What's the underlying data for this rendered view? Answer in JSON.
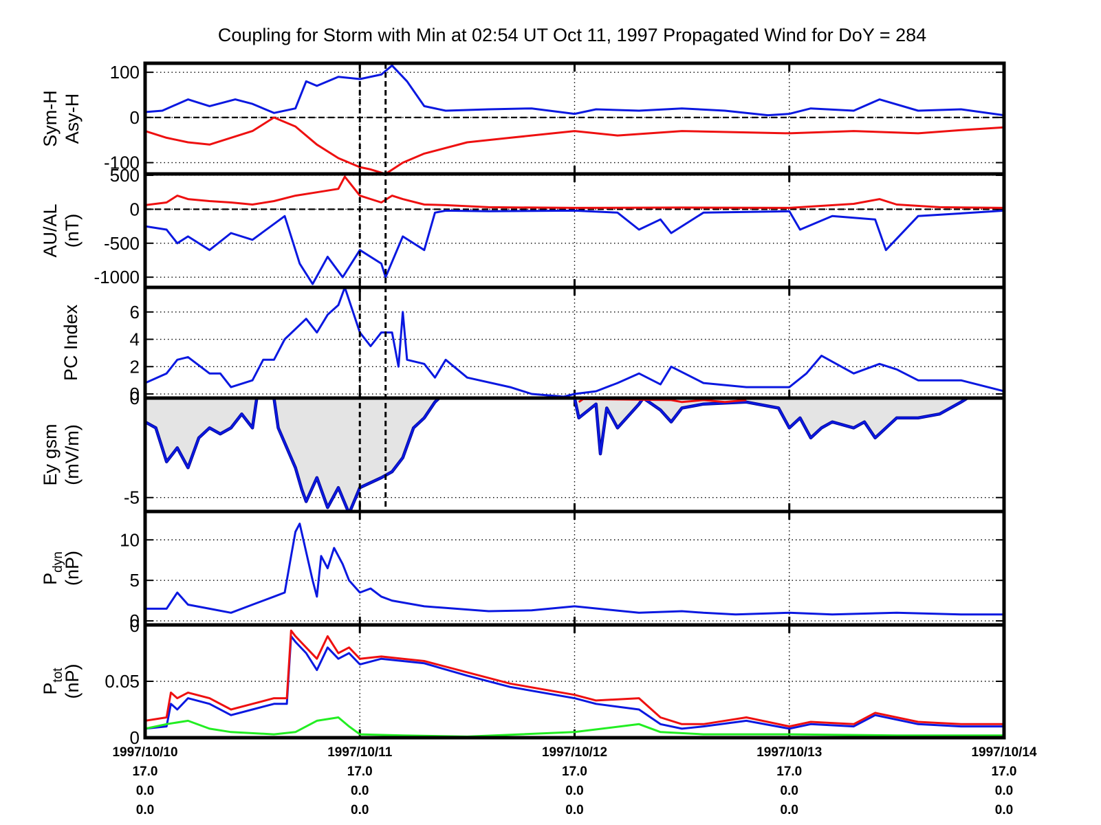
{
  "title": "Coupling for Storm with Min at 02:54 UT Oct 11, 1997  Propagated Wind for DoY = 284",
  "colors": {
    "blue": "#0a18e0",
    "red": "#ee1010",
    "green": "#22ee22",
    "fill": "#e4e4e4",
    "frame": "#000000"
  },
  "x_axis": {
    "range_days": [
      0,
      4
    ],
    "major_ticks": [
      0,
      1,
      2,
      3,
      4
    ],
    "labels": [
      {
        "date": "1997/10/10",
        "l2": "17.0",
        "l3": "0.0",
        "l4": "0.0"
      },
      {
        "date": "1997/10/11",
        "l2": "17.0",
        "l3": "0.0",
        "l4": "0.0"
      },
      {
        "date": "1997/10/12",
        "l2": "17.0",
        "l3": "0.0",
        "l4": "0.0"
      },
      {
        "date": "1997/10/13",
        "l2": "17.0",
        "l3": "0.0",
        "l4": "0.0"
      },
      {
        "date": "1997/10/14",
        "l2": "17.0",
        "l3": "0.0",
        "l4": "0.0"
      }
    ],
    "storm_min_marker_day": 1.12
  },
  "chart_data": [
    {
      "type": "line",
      "panel": "sym-asy",
      "ylabel": [
        "Sym-H",
        "Asy-H"
      ],
      "ylim": [
        -125,
        120
      ],
      "yticks": [
        100,
        0,
        -100
      ],
      "ytick_labels": [
        "100",
        "0",
        "-100"
      ],
      "zero_line": true,
      "series": [
        {
          "color": "blue",
          "x": [
            0,
            0.08,
            0.2,
            0.3,
            0.42,
            0.5,
            0.6,
            0.7,
            0.75,
            0.8,
            0.9,
            1.0,
            1.1,
            1.15,
            1.22,
            1.3,
            1.4,
            1.6,
            1.8,
            2.0,
            2.1,
            2.3,
            2.5,
            2.7,
            2.9,
            3.0,
            3.1,
            3.3,
            3.42,
            3.6,
            3.8,
            4.0
          ],
          "y": [
            12,
            15,
            40,
            25,
            40,
            30,
            10,
            20,
            80,
            70,
            90,
            85,
            95,
            115,
            80,
            25,
            15,
            18,
            20,
            8,
            18,
            15,
            20,
            15,
            5,
            8,
            20,
            15,
            40,
            15,
            18,
            5
          ]
        },
        {
          "color": "red",
          "x": [
            0,
            0.1,
            0.2,
            0.3,
            0.5,
            0.6,
            0.7,
            0.8,
            0.9,
            1.0,
            1.05,
            1.12,
            1.2,
            1.3,
            1.5,
            1.7,
            2.0,
            2.2,
            2.5,
            3.0,
            3.3,
            3.6,
            3.8,
            4.0
          ],
          "y": [
            -30,
            -45,
            -55,
            -60,
            -30,
            0,
            -20,
            -60,
            -90,
            -110,
            -115,
            -125,
            -100,
            -80,
            -55,
            -45,
            -30,
            -40,
            -30,
            -35,
            -30,
            -35,
            -28,
            -22
          ]
        }
      ]
    },
    {
      "type": "line",
      "panel": "au-al",
      "ylabel": [
        "AU/AL",
        "(nT)"
      ],
      "ylim": [
        -1150,
        520
      ],
      "yticks": [
        500,
        0,
        -500,
        -1000
      ],
      "ytick_labels": [
        "500",
        "0",
        "-500",
        "-1000"
      ],
      "zero_line": true,
      "series": [
        {
          "color": "red",
          "x": [
            0,
            0.1,
            0.15,
            0.2,
            0.3,
            0.4,
            0.5,
            0.6,
            0.7,
            0.8,
            0.9,
            0.93,
            1.0,
            1.1,
            1.15,
            1.2,
            1.3,
            1.4,
            1.6,
            2.0,
            2.5,
            3.0,
            3.3,
            3.42,
            3.5,
            3.7,
            4.0
          ],
          "y": [
            60,
            100,
            200,
            150,
            120,
            100,
            70,
            120,
            200,
            250,
            300,
            480,
            200,
            100,
            200,
            150,
            70,
            60,
            30,
            20,
            25,
            20,
            80,
            150,
            70,
            30,
            20
          ]
        },
        {
          "color": "blue",
          "x": [
            0,
            0.1,
            0.15,
            0.2,
            0.3,
            0.4,
            0.5,
            0.65,
            0.72,
            0.78,
            0.85,
            0.92,
            1.0,
            1.1,
            1.12,
            1.2,
            1.3,
            1.35,
            1.4,
            1.6,
            2.0,
            2.2,
            2.3,
            2.4,
            2.45,
            2.6,
            3.0,
            3.05,
            3.2,
            3.4,
            3.45,
            3.6,
            4.0
          ],
          "y": [
            -250,
            -300,
            -500,
            -400,
            -600,
            -350,
            -450,
            -100,
            -800,
            -1100,
            -700,
            -1000,
            -600,
            -800,
            -1000,
            -400,
            -600,
            -50,
            -20,
            -30,
            -20,
            -50,
            -300,
            -150,
            -350,
            -50,
            -30,
            -300,
            -100,
            -150,
            -600,
            -100,
            -20
          ]
        }
      ]
    },
    {
      "type": "line",
      "panel": "pc",
      "ylabel": [
        "PC Index"
      ],
      "ylim": [
        -0.3,
        7.8
      ],
      "yticks": [
        6,
        4,
        2,
        0
      ],
      "ytick_labels": [
        "6",
        "4",
        "2",
        "0"
      ],
      "zero_line": false,
      "series": [
        {
          "color": "blue",
          "x": [
            0,
            0.1,
            0.15,
            0.2,
            0.3,
            0.35,
            0.4,
            0.5,
            0.55,
            0.6,
            0.65,
            0.75,
            0.8,
            0.85,
            0.9,
            0.93,
            1.0,
            1.05,
            1.1,
            1.15,
            1.18,
            1.2,
            1.22,
            1.3,
            1.35,
            1.4,
            1.5,
            1.7,
            1.8,
            1.95,
            2.0,
            2.1,
            2.2,
            2.3,
            2.4,
            2.45,
            2.6,
            2.8,
            3.0,
            3.08,
            3.15,
            3.3,
            3.42,
            3.5,
            3.6,
            3.8,
            4.0
          ],
          "y": [
            0.8,
            1.5,
            2.5,
            2.7,
            1.5,
            1.5,
            0.5,
            1,
            2.5,
            2.5,
            4,
            5.5,
            4.5,
            5.8,
            6.5,
            7.8,
            4.5,
            3.5,
            4.5,
            4.5,
            2,
            6,
            2.5,
            2.2,
            1.2,
            2.5,
            1.2,
            0.5,
            0,
            -0.2,
            0,
            0.2,
            0.8,
            1.5,
            0.7,
            2,
            0.8,
            0.5,
            0.5,
            1.5,
            2.8,
            1.5,
            2.2,
            1.8,
            1,
            1,
            0.2
          ]
        }
      ]
    },
    {
      "type": "area",
      "panel": "ey",
      "ylabel": [
        "Ey gsm",
        "(mV/m)"
      ],
      "ylim": [
        -5.7,
        0
      ],
      "yticks": [
        -5,
        0
      ],
      "ytick_labels": [
        "-5",
        "0"
      ],
      "zero_line": false,
      "series": [
        {
          "color": "blue",
          "fill": "fill",
          "x": [
            0,
            0.05,
            0.1,
            0.15,
            0.2,
            0.25,
            0.3,
            0.35,
            0.4,
            0.45,
            0.5,
            0.52,
            0.6,
            0.62,
            0.7,
            0.73,
            0.75,
            0.8,
            0.85,
            0.9,
            0.95,
            1.0,
            1.1,
            1.15,
            1.2,
            1.25,
            1.3,
            1.35,
            1.37,
            2.0,
            2.02,
            2.1,
            2.12,
            2.15,
            2.2,
            2.3,
            2.32,
            2.4,
            2.45,
            2.5,
            2.6,
            2.8,
            2.95,
            3.0,
            3.05,
            3.1,
            3.15,
            3.2,
            3.3,
            3.35,
            3.4,
            3.45,
            3.5,
            3.6,
            3.7,
            3.8,
            3.83,
            4.0
          ],
          "y": [
            -1.2,
            -1.5,
            -3.2,
            -2.5,
            -3.5,
            -2,
            -1.5,
            -1.8,
            -1.5,
            -0.8,
            -1.5,
            0,
            0,
            -1.5,
            -3.5,
            -4.6,
            -5.2,
            -4,
            -5.5,
            -4.5,
            -5.8,
            -4.5,
            -4,
            -3.7,
            -3,
            -1.5,
            -1,
            -0.2,
            0,
            0,
            -1,
            -0.3,
            -2.8,
            -0.5,
            -1.5,
            -0.3,
            0,
            -0.6,
            -1.2,
            -0.5,
            -0.3,
            -0.2,
            -0.5,
            -1.5,
            -1,
            -2,
            -1.5,
            -1.2,
            -1.5,
            -1.2,
            -2,
            -1.5,
            -1,
            -1,
            -0.8,
            -0.2,
            0,
            0
          ]
        },
        {
          "color": "red",
          "x": [
            2.02,
            2.04,
            2.45,
            2.5,
            2.6,
            2.7,
            2.8
          ],
          "y": [
            -0.2,
            -0.05,
            -0.1,
            -0.2,
            -0.1,
            -0.2,
            -0.1
          ]
        }
      ]
    },
    {
      "type": "line",
      "panel": "pdyn",
      "ylabel": [
        "P_dyn",
        "(nP)"
      ],
      "ylim": [
        -0.5,
        13.5
      ],
      "yticks": [
        10,
        5,
        0
      ],
      "ytick_labels": [
        "10",
        "5",
        "0"
      ],
      "zero_line": false,
      "series": [
        {
          "color": "blue",
          "x": [
            0,
            0.1,
            0.15,
            0.2,
            0.3,
            0.4,
            0.5,
            0.6,
            0.65,
            0.68,
            0.7,
            0.72,
            0.78,
            0.8,
            0.82,
            0.85,
            0.88,
            0.92,
            0.95,
            1.0,
            1.05,
            1.1,
            1.15,
            1.3,
            1.6,
            1.8,
            2.0,
            2.3,
            2.5,
            2.6,
            2.75,
            3.0,
            3.2,
            3.5,
            3.8,
            4.0
          ],
          "y": [
            1.5,
            1.5,
            3.5,
            2,
            1.5,
            1,
            2,
            3,
            3.5,
            8,
            11,
            12,
            5,
            3,
            8,
            6.5,
            9,
            7,
            5,
            3.5,
            4,
            3,
            2.5,
            1.8,
            1.2,
            1.3,
            1.8,
            1,
            1.2,
            1,
            0.8,
            1,
            0.8,
            1,
            0.8,
            0.8
          ]
        }
      ]
    },
    {
      "type": "line",
      "panel": "ptot",
      "ylabel": [
        "P_tot",
        "(nP)"
      ],
      "ylim": [
        0,
        0.1
      ],
      "yticks": [
        0.05,
        0
      ],
      "ytick_labels": [
        "0.05",
        "0"
      ],
      "top_label": "0",
      "zero_line": false,
      "series": [
        {
          "color": "blue",
          "x": [
            0,
            0.1,
            0.12,
            0.15,
            0.2,
            0.3,
            0.4,
            0.5,
            0.6,
            0.66,
            0.68,
            0.7,
            0.75,
            0.8,
            0.85,
            0.9,
            0.95,
            1.0,
            1.1,
            1.2,
            1.3,
            1.5,
            1.7,
            2.0,
            2.1,
            2.3,
            2.4,
            2.5,
            2.6,
            2.8,
            3.0,
            3.1,
            3.3,
            3.4,
            3.6,
            3.8,
            4.0
          ],
          "y": [
            0.008,
            0.01,
            0.03,
            0.025,
            0.035,
            0.03,
            0.02,
            0.025,
            0.03,
            0.03,
            0.09,
            0.085,
            0.075,
            0.06,
            0.08,
            0.07,
            0.075,
            0.065,
            0.07,
            0.068,
            0.066,
            0.055,
            0.045,
            0.035,
            0.03,
            0.025,
            0.012,
            0.008,
            0.01,
            0.015,
            0.008,
            0.012,
            0.01,
            0.02,
            0.012,
            0.01,
            0.01
          ]
        },
        {
          "color": "red",
          "x": [
            0,
            0.1,
            0.12,
            0.15,
            0.2,
            0.3,
            0.4,
            0.5,
            0.6,
            0.66,
            0.68,
            0.7,
            0.75,
            0.8,
            0.85,
            0.9,
            0.95,
            1.0,
            1.1,
            1.2,
            1.3,
            1.5,
            1.7,
            2.0,
            2.1,
            2.3,
            2.4,
            2.5,
            2.6,
            2.8,
            3.0,
            3.1,
            3.3,
            3.4,
            3.6,
            3.8,
            4.0
          ],
          "y": [
            0.015,
            0.018,
            0.04,
            0.035,
            0.04,
            0.035,
            0.025,
            0.03,
            0.035,
            0.035,
            0.095,
            0.09,
            0.08,
            0.07,
            0.09,
            0.075,
            0.08,
            0.07,
            0.072,
            0.07,
            0.068,
            0.058,
            0.048,
            0.038,
            0.033,
            0.035,
            0.018,
            0.012,
            0.012,
            0.018,
            0.01,
            0.014,
            0.012,
            0.022,
            0.014,
            0.012,
            0.012
          ]
        },
        {
          "color": "green",
          "x": [
            0,
            0.1,
            0.2,
            0.3,
            0.4,
            0.6,
            0.7,
            0.8,
            0.9,
            0.95,
            1.0,
            1.2,
            1.5,
            2.0,
            2.3,
            2.4,
            2.6,
            3.0,
            3.5,
            4.0
          ],
          "y": [
            0.008,
            0.012,
            0.015,
            0.008,
            0.005,
            0.003,
            0.005,
            0.015,
            0.018,
            0.01,
            0.003,
            0.002,
            0.001,
            0.005,
            0.012,
            0.005,
            0.003,
            0.003,
            0.002,
            0.002
          ]
        }
      ]
    }
  ]
}
